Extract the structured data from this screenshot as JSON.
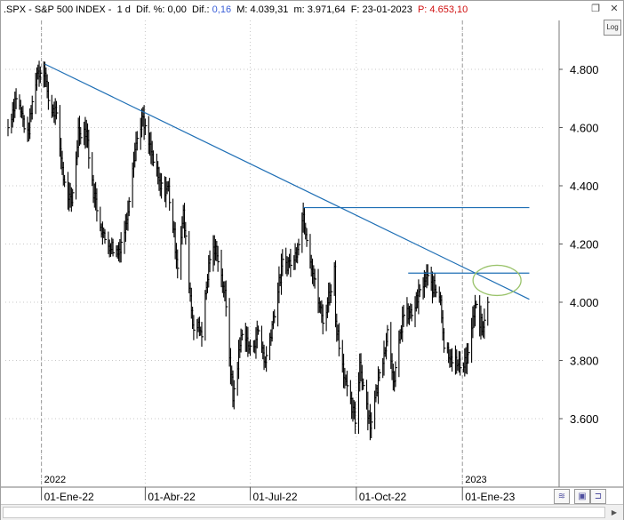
{
  "header": {
    "symbol": ".SPX - S&P 500 INDEX",
    "period": "1 d",
    "dif_pct_label": "Dif. %:",
    "dif_pct_value": "0,00",
    "dif_label": "Dif.:",
    "dif_value": "0,16",
    "max_label": "M:",
    "max_value": "4.039,31",
    "min_label": "m:",
    "min_value": "3.971,64",
    "date_label": "F:",
    "date_value": "23-01-2023",
    "price_label": "P:",
    "price_value": "4.653,10"
  },
  "window_controls": {
    "restore": "❐",
    "close": "✕"
  },
  "log_button": "Log",
  "colors": {
    "price": "#000000",
    "trendline": "#1f6fb5",
    "level_lines": "#1f6fb5",
    "highlight_ellipse": "#9ac36b",
    "grid": "#c8c8c8"
  },
  "icons": [
    "zoom-icon",
    "save-icon",
    "cursor-icon",
    "scroll-right-icon"
  ],
  "chart_data": {
    "type": "ohlc",
    "series_label": "S&P 500 INDEX (.SPX)",
    "interval": "1 d",
    "x_range": [
      "2021-12-03",
      "2023-01-23"
    ],
    "ylim": [
      3460,
      4860
    ],
    "y_ticks": [
      "4.800",
      "4.600",
      "4.400",
      "4.200",
      "4.000",
      "3.800",
      "3.600"
    ],
    "y_tick_values": [
      4800,
      4600,
      4400,
      4200,
      4000,
      3800,
      3600
    ],
    "x_ticks": [
      {
        "date": "2022-01-01",
        "label": "01-Ene-22"
      },
      {
        "date": "2022-04-01",
        "label": "01-Abr-22"
      },
      {
        "date": "2022-07-01",
        "label": "01-Jul-22"
      },
      {
        "date": "2022-10-01",
        "label": "01-Oct-22"
      },
      {
        "date": "2023-01-01",
        "label": "01-Ene-23"
      }
    ],
    "year_markers": [
      {
        "date": "2022-01-01",
        "label": "2022"
      },
      {
        "date": "2023-01-01",
        "label": "2023"
      }
    ],
    "price_path": [
      [
        "2021-12-03",
        4600
      ],
      [
        "2021-12-10",
        4710
      ],
      [
        "2021-12-20",
        4570
      ],
      [
        "2021-12-28",
        4790
      ],
      [
        "2022-01-04",
        4800
      ],
      [
        "2022-01-07",
        4680
      ],
      [
        "2022-01-13",
        4660
      ],
      [
        "2022-01-21",
        4400
      ],
      [
        "2022-01-27",
        4330
      ],
      [
        "2022-02-02",
        4590
      ],
      [
        "2022-02-09",
        4590
      ],
      [
        "2022-02-14",
        4400
      ],
      [
        "2022-02-24",
        4220
      ],
      [
        "2022-03-08",
        4170
      ],
      [
        "2022-03-15",
        4260
      ],
      [
        "2022-03-22",
        4510
      ],
      [
        "2022-03-29",
        4630
      ],
      [
        "2022-04-07",
        4500
      ],
      [
        "2022-04-14",
        4390
      ],
      [
        "2022-04-21",
        4390
      ],
      [
        "2022-04-29",
        4130
      ],
      [
        "2022-05-04",
        4300
      ],
      [
        "2022-05-12",
        3930
      ],
      [
        "2022-05-20",
        3900
      ],
      [
        "2022-05-27",
        4160
      ],
      [
        "2022-06-02",
        4180
      ],
      [
        "2022-06-09",
        4020
      ],
      [
        "2022-06-16",
        3670
      ],
      [
        "2022-06-24",
        3910
      ],
      [
        "2022-07-01",
        3830
      ],
      [
        "2022-07-08",
        3900
      ],
      [
        "2022-07-14",
        3790
      ],
      [
        "2022-07-22",
        3970
      ],
      [
        "2022-07-29",
        4130
      ],
      [
        "2022-08-08",
        4140
      ],
      [
        "2022-08-16",
        4300
      ],
      [
        "2022-08-19",
        4230
      ],
      [
        "2022-08-26",
        4060
      ],
      [
        "2022-09-02",
        3930
      ],
      [
        "2022-09-12",
        4110
      ],
      [
        "2022-09-13",
        3940
      ],
      [
        "2022-09-23",
        3690
      ],
      [
        "2022-09-30",
        3590
      ],
      [
        "2022-10-04",
        3790
      ],
      [
        "2022-10-13",
        3580
      ],
      [
        "2022-10-21",
        3750
      ],
      [
        "2022-10-28",
        3900
      ],
      [
        "2022-11-03",
        3720
      ],
      [
        "2022-11-10",
        3950
      ],
      [
        "2022-11-18",
        3960
      ],
      [
        "2022-11-30",
        4080
      ],
      [
        "2022-12-01",
        4080
      ],
      [
        "2022-12-13",
        4020
      ],
      [
        "2022-12-16",
        3850
      ],
      [
        "2022-12-22",
        3820
      ],
      [
        "2022-12-28",
        3780
      ],
      [
        "2023-01-05",
        3810
      ],
      [
        "2023-01-12",
        3980
      ],
      [
        "2023-01-19",
        3900
      ],
      [
        "2023-01-23",
        4020
      ]
    ],
    "drawn_lines": [
      {
        "name": "downtrend",
        "from": [
          "2022-01-04",
          4818
        ],
        "to": [
          "2023-02-28",
          4010
        ]
      },
      {
        "name": "resistance-august",
        "from": [
          "2022-08-16",
          4325
        ],
        "to": [
          "2023-02-28",
          4325
        ]
      },
      {
        "name": "resistance-december",
        "from": [
          "2022-11-15",
          4100
        ],
        "to": [
          "2023-02-28",
          4100
        ]
      }
    ],
    "highlight_ellipse": {
      "center": [
        "2023-01-31",
        4075
      ]
    }
  }
}
